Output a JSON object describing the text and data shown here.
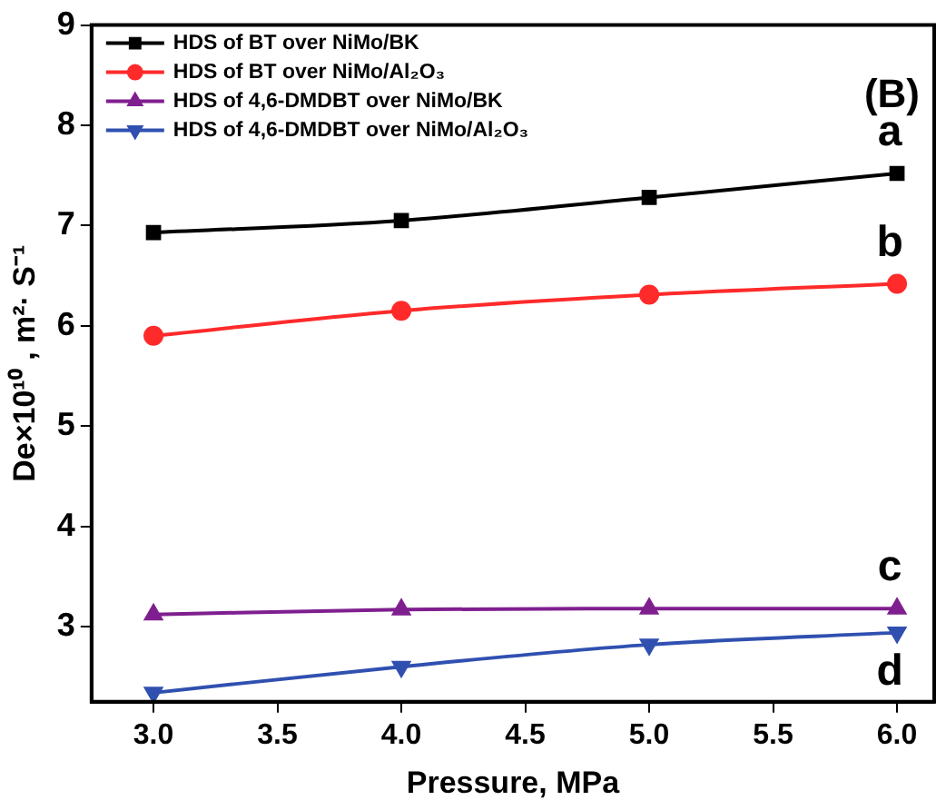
{
  "chart_data": {
    "type": "line",
    "xlabel": "Pressure, MPa",
    "ylabel": "De×10¹⁰ , m²· S⁻¹",
    "x": [
      3.0,
      4.0,
      5.0,
      6.0
    ],
    "series": [
      {
        "name": "HDS of BT over NiMo/BK",
        "color": "#000000",
        "marker": "square",
        "values": [
          6.93,
          7.05,
          7.28,
          7.52
        ]
      },
      {
        "name": "HDS of BT over NiMo/Al₂O₃",
        "color": "#ff2a2a",
        "marker": "circle",
        "values": [
          5.9,
          6.15,
          6.31,
          6.42
        ]
      },
      {
        "name": "HDS of 4,6-DMDBT over NiMo/BK",
        "color": "#7f1f8f",
        "marker": "triangle",
        "values": [
          3.12,
          3.17,
          3.18,
          3.18
        ]
      },
      {
        "name": "HDS of 4,6-DMDBT over NiMo/Al₂O₃",
        "color": "#3050b0",
        "marker": "triangle-down",
        "values": [
          2.34,
          2.6,
          2.82,
          2.94
        ]
      }
    ],
    "xlim": [
      2.75,
      6.15
    ],
    "xticks": [
      {
        "value": 3,
        "label": "3.0"
      },
      {
        "value": 3.5,
        "label": "3.5"
      },
      {
        "value": 4,
        "label": "4.0"
      },
      {
        "value": 4.5,
        "label": "4.5"
      },
      {
        "value": 5,
        "label": "5.0"
      },
      {
        "value": 5.5,
        "label": "5.5"
      },
      {
        "value": 6,
        "label": "6.0"
      }
    ],
    "ylim": [
      2.25,
      9
    ],
    "yticks": [
      3,
      4,
      5,
      6,
      7,
      8,
      9
    ],
    "grid": false,
    "legend": "top left",
    "line_style": "solid",
    "annotations": [
      "(B)",
      "a",
      "b",
      "c",
      "d"
    ]
  }
}
